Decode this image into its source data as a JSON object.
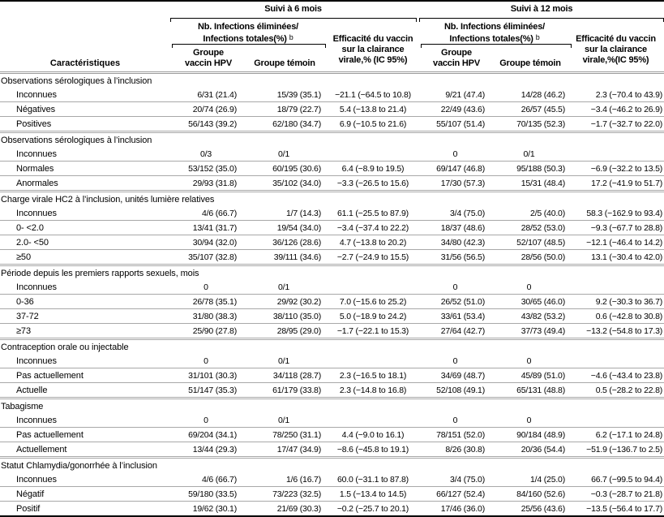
{
  "colors": {
    "rule_black": "#000000",
    "rule_gray": "#a8a8a8",
    "text": "#000000",
    "background": "#ffffff"
  },
  "table": {
    "col1_header": "Caractéristiques",
    "groups": [
      {
        "title": "Suivi à 6 mois",
        "sub": {
          "line1": "Nb. Infections éliminées/",
          "line2": "Infections totales(%)",
          "marker": "b"
        },
        "col_hpv": [
          "Groupe",
          "vaccin HPV"
        ],
        "col_temoin": "Groupe témoin",
        "efficacy": [
          "Efficacité du vaccin",
          "sur la clairance",
          "virale,% (IC 95%)"
        ]
      },
      {
        "title": "Suivi à 12 mois",
        "sub": {
          "line1": "Nb. Infections éliminées/",
          "line2": "Infections totales(%)",
          "marker": "b"
        },
        "col_hpv": [
          "Groupe",
          "vaccin HPV"
        ],
        "col_temoin": "Groupe témoin",
        "efficacy": [
          "Efficacité du vaccin",
          "sur la clairance",
          "virale,%(IC 95%)"
        ]
      }
    ],
    "sections": [
      {
        "label": "Observations sérologiques à l’inclusion",
        "rows": [
          {
            "label": "Inconnues",
            "values": [
              "6/31 (21.4)",
              "15/39 (35.1)",
              "−21.1 (−64.5 to 10.8)",
              "9/21 (47.4)",
              "14/28 (46.2)",
              "2.3 (−70.4 to 43.9)"
            ]
          },
          {
            "label": "Négatives",
            "values": [
              "20/74 (26.9)",
              "18/79 (22.7)",
              "5.4 (−13.8 to 21.4)",
              "22/49 (43.6)",
              "26/57 (45.5)",
              "−3.4 (−46.2 to 26.9)"
            ]
          },
          {
            "label": "Positives",
            "values": [
              "56/143 (39.2)",
              "62/180 (34.7)",
              "6.9 (−10.5 to 21.6)",
              "55/107 (51.4)",
              "70/135 (52.3)",
              "−1.7 (−32.7 to 22.0)"
            ]
          }
        ]
      },
      {
        "label": "Observations sérologiques à l’inclusion",
        "rows": [
          {
            "label": "Inconnues",
            "values": [
              "0/3",
              "0/1",
              "",
              "0",
              "0/1",
              ""
            ]
          },
          {
            "label": "Normales",
            "values": [
              "53/152 (35.0)",
              "60/195 (30.6)",
              "6.4 (−8.9 to 19.5)",
              "69/147 (46.8)",
              "95/188 (50.3)",
              "−6.9 (−32.2 to 13.5)"
            ]
          },
          {
            "label": "Anormales",
            "values": [
              "29/93 (31.8)",
              "35/102 (34.0)",
              "−3.3 (−26.5 to 15.6)",
              "17/30 (57.3)",
              "15/31 (48.4)",
              "17.2 (−41.9 to 51.7)"
            ]
          }
        ]
      },
      {
        "label": "Charge virale HC2 à l’inclusion, unités lumière relatives",
        "rows": [
          {
            "label": "Inconnues",
            "values": [
              "4/6 (66.7)",
              "1/7 (14.3)",
              "61.1 (−25.5 to 87.9)",
              "3/4 (75.0)",
              "2/5 (40.0)",
              "58.3 (−162.9 to 93.4)"
            ]
          },
          {
            "label": "0- <2.0",
            "values": [
              "13/41 (31.7)",
              "19/54 (34.0)",
              "−3.4 (−37.4 to 22.2)",
              "18/37 (48.6)",
              "28/52 (53.0)",
              "−9.3 (−67.7 to 28.8)"
            ]
          },
          {
            "label": "2.0- <50",
            "values": [
              "30/94 (32.0)",
              "36/126 (28.6)",
              "4.7 (−13.8 to 20.2)",
              "34/80 (42.3)",
              "52/107 (48.5)",
              "−12.1 (−46.4 to 14.2)"
            ]
          },
          {
            "label": "≥50",
            "values": [
              "35/107 (32.8)",
              "39/111 (34.6)",
              "−2.7 (−24.9 to 15.5)",
              "31/56 (56.5)",
              "28/56 (50.0)",
              "13.1 (−30.4 to 42.0)"
            ]
          }
        ]
      },
      {
        "label": "Période depuis les premiers rapports sexuels, mois",
        "rows": [
          {
            "label": "Inconnues",
            "values": [
              "0",
              "0/1",
              "",
              "0",
              "0",
              ""
            ]
          },
          {
            "label": "0-36",
            "values": [
              "26/78 (35.1)",
              "29/92 (30.2)",
              "7.0 (−15.6 to 25.2)",
              "26/52 (51.0)",
              "30/65 (46.0)",
              "9.2 (−30.3 to 36.7)"
            ]
          },
          {
            "label": "37-72",
            "values": [
              "31/80 (38.3)",
              "38/110 (35.0)",
              "5.0 (−18.9 to 24.2)",
              "33/61 (53.4)",
              "43/82 (53.2)",
              "0.6 (−42.8 to 30.8)"
            ]
          },
          {
            "label": "≥73",
            "values": [
              "25/90 (27.8)",
              "28/95 (29.0)",
              "−1.7 (−22.1 to 15.3)",
              "27/64 (42.7)",
              "37/73 (49.4)",
              "−13.2 (−54.8 to 17.3)"
            ]
          }
        ]
      },
      {
        "label": "Contraception orale ou injectable",
        "rows": [
          {
            "label": "Inconnues",
            "values": [
              "0",
              "0/1",
              "",
              "0",
              "0",
              ""
            ]
          },
          {
            "label": "Pas actuellement",
            "values": [
              "31/101 (30.3)",
              "34/118 (28.7)",
              "2.3 (−16.5 to 18.1)",
              "34/69 (48.7)",
              "45/89 (51.0)",
              "−4.6 (−43.4 to 23.8)"
            ]
          },
          {
            "label": "Actuelle",
            "values": [
              "51/147 (35.3)",
              "61/179 (33.8)",
              "2.3 (−14.8 to 16.8)",
              "52/108 (49.1)",
              "65/131 (48.8)",
              "0.5 (−28.2 to 22.8)"
            ]
          }
        ]
      },
      {
        "label": "Tabagisme",
        "rows": [
          {
            "label": "Inconnues",
            "values": [
              "0",
              "0/1",
              "",
              "0",
              "0",
              ""
            ]
          },
          {
            "label": "Pas actuellement",
            "values": [
              "69/204 (34.1)",
              "78/250 (31.1)",
              "4.4 (−9.0 to 16.1)",
              "78/151 (52.0)",
              "90/184 (48.9)",
              "6.2 (−17.1 to 24.8)"
            ]
          },
          {
            "label": "Actuellement",
            "values": [
              "13/44 (29.3)",
              "17/47 (34.9)",
              "−8.6 (−45.8 to 19.1)",
              "8/26 (30.8)",
              "20/36 (54.4)",
              "−51.9 (−136.7 to 2.5)"
            ]
          }
        ]
      },
      {
        "label": "Statut Chlamydia/gonorrhée à l’inclusion",
        "rows": [
          {
            "label": "Inconnues",
            "values": [
              "4/6 (66.7)",
              "1/6 (16.7)",
              "60.0 (−31.1 to 87.8)",
              "3/4 (75.0)",
              "1/4 (25.0)",
              "66.7 (−99.5 to 94.4)"
            ]
          },
          {
            "label": "Négatif",
            "values": [
              "59/180 (33.5)",
              "73/223 (32.5)",
              "1.5 (−13.4 to 14.5)",
              "66/127 (52.4)",
              "84/160 (52.6)",
              "−0.3 (−28.7 to 21.8)"
            ]
          },
          {
            "label": "Positif",
            "values": [
              "19/62 (30.1)",
              "21/69 (30.3)",
              "−0.2 (−25.7 to 20.1)",
              "17/46 (36.0)",
              "25/56 (43.6)",
              "−13.5 (−56.4 to 17.7)"
            ]
          }
        ]
      }
    ]
  }
}
